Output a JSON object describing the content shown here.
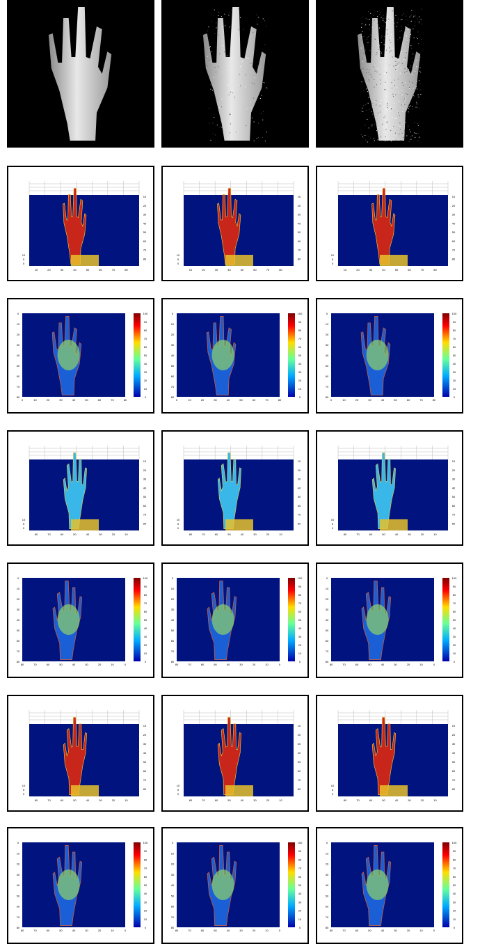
{
  "figure": {
    "rows": [
      {
        "kind": "photo",
        "variants": [
          "clean",
          "mild-noise",
          "heavy-noise"
        ]
      },
      {
        "kind": "surface-3d",
        "colormap": "jet",
        "y_ticks": [
          "10",
          "20",
          "30",
          "40",
          "50",
          "60",
          "70",
          "80"
        ],
        "z_ticks": [
          "10",
          "5",
          "0"
        ],
        "x_ticks": [
          "10",
          "20",
          "30",
          "40",
          "50",
          "60",
          "70",
          "80"
        ]
      },
      {
        "kind": "colormap-2d",
        "colormap": "jet",
        "colorbar_ticks": [
          "100",
          "90",
          "80",
          "70",
          "60",
          "50",
          "40",
          "30",
          "20",
          "10",
          "0"
        ],
        "y_ticks": [
          "0",
          "10",
          "20",
          "30",
          "40",
          "50",
          "60",
          "70",
          "80"
        ],
        "x_ticks": [
          "0",
          "10",
          "20",
          "30",
          "40",
          "50",
          "60",
          "70",
          "80"
        ]
      },
      {
        "kind": "surface-3d",
        "colormap": "jet",
        "y_ticks": [
          "10",
          "20",
          "30",
          "40",
          "50",
          "60",
          "70",
          "80"
        ],
        "z_ticks": [
          "10",
          "5",
          "0"
        ],
        "x_ticks": [
          "80",
          "70",
          "60",
          "50",
          "40",
          "30",
          "20",
          "10"
        ]
      },
      {
        "kind": "colormap-2d",
        "colormap": "jet",
        "colorbar_ticks": [
          "100",
          "90",
          "80",
          "70",
          "60",
          "50",
          "40",
          "30",
          "20",
          "10",
          "0"
        ],
        "y_ticks": [
          "0",
          "10",
          "20",
          "30",
          "40",
          "50",
          "60",
          "70",
          "80"
        ],
        "x_ticks": [
          "80",
          "70",
          "60",
          "50",
          "40",
          "30",
          "20",
          "10",
          "0"
        ]
      },
      {
        "kind": "surface-3d",
        "colormap": "jet",
        "y_ticks": [
          "10",
          "20",
          "30",
          "40",
          "50",
          "60",
          "70",
          "80"
        ],
        "z_ticks": [
          "10",
          "5",
          "0"
        ],
        "x_ticks": [
          "80",
          "70",
          "60",
          "50",
          "40",
          "30",
          "20",
          "10"
        ]
      },
      {
        "kind": "colormap-2d",
        "colormap": "jet",
        "colorbar_ticks": [
          "100",
          "90",
          "80",
          "70",
          "60",
          "50",
          "40",
          "30",
          "20",
          "10",
          "0"
        ],
        "y_ticks": [
          "0",
          "10",
          "20",
          "30",
          "40",
          "50",
          "60",
          "70",
          "80"
        ],
        "x_ticks": [
          "80",
          "70",
          "60",
          "50",
          "40",
          "30",
          "20",
          "10",
          "0"
        ]
      }
    ],
    "colors": {
      "plot_background": "#00137f",
      "hand_hot": "#c8261a",
      "hand_mid": "#38b7e8",
      "hand_cool": "#1b5fd6",
      "photo_background": "#000000",
      "photo_hand": "#e8e8e8"
    }
  }
}
